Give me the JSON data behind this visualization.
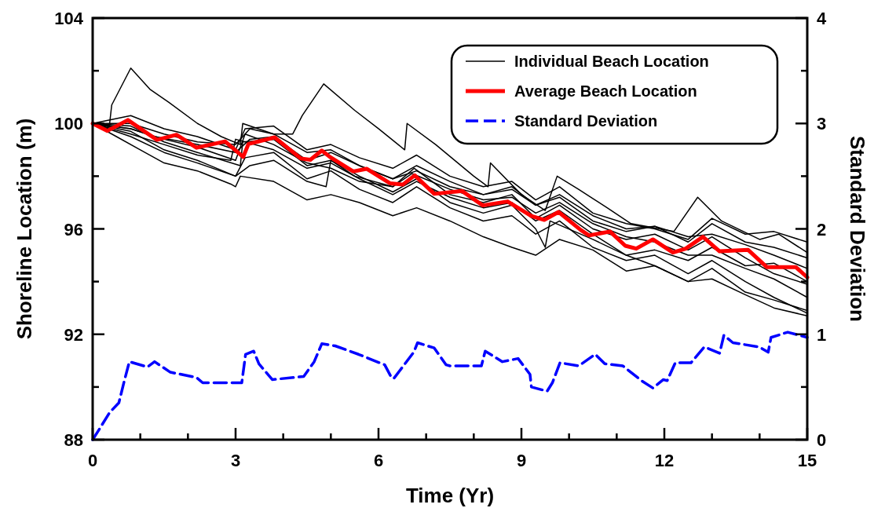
{
  "chart_data": {
    "type": "line",
    "xlabel": "Time (Yr)",
    "ylabel": "Shoreline Location (m)",
    "y2label": "Standard Deviation",
    "xlim": [
      0,
      15
    ],
    "xticks": [
      0,
      {
        "value": 1,
        "label": null
      },
      {
        "value": 2,
        "label": null
      },
      3,
      {
        "value": 4,
        "label": null
      },
      {
        "value": 5,
        "label": null
      },
      6,
      {
        "value": 7,
        "label": null
      },
      {
        "value": 8,
        "label": null
      },
      9,
      {
        "value": 10,
        "label": null
      },
      {
        "value": 11,
        "label": null
      },
      12,
      {
        "value": 13,
        "label": null
      },
      {
        "value": 14,
        "label": null
      },
      15
    ],
    "ylim": [
      88,
      104
    ],
    "yticks": [
      88,
      {
        "value": 90,
        "label": null
      },
      92,
      {
        "value": 94,
        "label": null
      },
      96,
      {
        "value": 98,
        "label": null
      },
      100,
      {
        "value": 102,
        "label": null
      },
      104
    ],
    "y2lim": [
      0,
      4
    ],
    "y2ticks": [
      0,
      {
        "value": 0.5,
        "label": null
      },
      1,
      {
        "value": 1.5,
        "label": null
      },
      2,
      {
        "value": 2.5,
        "label": null
      },
      3,
      {
        "value": 3.5,
        "label": null
      },
      4
    ],
    "legend": "top right",
    "series": [
      {
        "color": "#000000",
        "x": [
          0,
          0.8,
          1.5,
          2.2,
          3.0,
          3.2,
          3.8,
          4.5,
          5.0,
          5.6,
          6.3,
          6.8,
          7.5,
          8.2,
          8.8,
          9.3,
          9.8,
          10.5,
          11.2,
          11.8,
          12.5,
          13.0,
          13.7,
          14.3,
          15
        ],
        "values": [
          100,
          99.7,
          99.0,
          98.6,
          98.0,
          98.7,
          98.9,
          97.9,
          98.2,
          97.5,
          97.0,
          97.6,
          96.8,
          96.3,
          96.5,
          95.8,
          96.3,
          95.3,
          94.8,
          95.0,
          94.3,
          94.8,
          94.0,
          93.4,
          92.8
        ]
      },
      {
        "color": "#000000",
        "x": [
          0,
          0.8,
          1.5,
          2.2,
          3.1,
          3.15,
          3.8,
          4.5,
          5.0,
          5.5,
          6.3,
          6.75,
          7.5,
          8.2,
          8.8,
          9.3,
          9.8,
          10.5,
          11.2,
          11.8,
          12.5,
          13.0,
          13.7,
          14.3,
          15
        ],
        "values": [
          100,
          99.9,
          99.3,
          98.9,
          98.4,
          99.3,
          99.4,
          98.4,
          98.6,
          98.0,
          97.6,
          98.3,
          97.3,
          97.0,
          97.3,
          96.4,
          96.9,
          96.0,
          95.6,
          95.8,
          95.2,
          95.7,
          94.9,
          94.3,
          93.9
        ]
      },
      {
        "color": "#000000",
        "x": [
          0,
          0.8,
          1.5,
          2.2,
          3.0,
          3.2,
          3.8,
          4.5,
          5.0,
          5.6,
          6.3,
          6.8,
          7.5,
          8.2,
          8.8,
          9.3,
          9.8,
          10.5,
          11.2,
          11.8,
          12.5,
          13.0,
          13.7,
          14.3,
          15
        ],
        "values": [
          100,
          100.3,
          99.8,
          99.5,
          99.0,
          99.8,
          99.9,
          99.0,
          99.2,
          98.7,
          98.3,
          98.8,
          98.0,
          97.6,
          97.8,
          97.1,
          97.6,
          96.6,
          96.2,
          96.0,
          95.6,
          96.4,
          95.8,
          95.9,
          95.5
        ]
      },
      {
        "color": "#000000",
        "x": [
          0,
          0.8,
          1.3,
          2.2,
          3.0,
          3.3,
          3.8,
          4.5,
          5.0,
          5.6,
          6.3,
          6.8,
          7.5,
          8.2,
          8.8,
          9.3,
          9.8,
          10.5,
          11.2,
          11.8,
          12.5,
          13.0,
          13.7,
          14.3,
          15
        ],
        "values": [
          100,
          99.8,
          99.5,
          99.2,
          98.9,
          99.4,
          99.5,
          98.6,
          98.9,
          98.4,
          97.9,
          98.2,
          97.6,
          97.3,
          97.6,
          96.9,
          97.2,
          96.3,
          95.9,
          96.1,
          95.7,
          95.8,
          95.4,
          95.0,
          94.5
        ]
      },
      {
        "color": "#000000",
        "x": [
          0,
          0.8,
          1.5,
          2.2,
          3.0,
          3.3,
          3.8,
          4.5,
          4.9,
          5.0,
          5.6,
          6.3,
          6.8,
          7.5,
          8.2,
          8.8,
          9.3,
          9.5,
          9.6,
          10.5,
          11.2,
          11.8,
          12.5,
          13.0,
          13.7,
          14.3,
          15
        ],
        "values": [
          100,
          99.5,
          98.9,
          98.5,
          98.0,
          98.4,
          98.6,
          97.8,
          97.6,
          98.6,
          98.0,
          97.4,
          97.9,
          97.0,
          96.6,
          96.9,
          96.0,
          95.3,
          96.3,
          95.6,
          95.0,
          94.6,
          94.0,
          94.5,
          93.6,
          93.3,
          92.9
        ]
      },
      {
        "color": "#000000",
        "x": [
          0,
          0.8,
          1.5,
          2.2,
          2.9,
          3.0,
          3.8,
          4.5,
          5.0,
          5.6,
          6.3,
          6.8,
          7.5,
          8.2,
          8.8,
          9.3,
          9.8,
          10.5,
          11.2,
          11.8,
          12.5,
          13.0,
          13.7,
          14.3,
          15
        ],
        "values": [
          100,
          99.6,
          99.2,
          98.8,
          98.6,
          99.4,
          99.0,
          98.3,
          98.5,
          97.9,
          97.3,
          97.8,
          97.2,
          96.8,
          97.0,
          96.3,
          96.7,
          95.8,
          95.0,
          95.2,
          94.8,
          95.3,
          94.6,
          94.7,
          94.0
        ]
      },
      {
        "color": "#000000",
        "x": [
          0,
          0.5,
          1.0,
          1.5,
          2.2,
          2.9,
          3.0,
          3.1,
          3.8,
          4.5,
          5.0,
          5.6,
          6.3,
          6.8,
          7.5,
          8.2,
          8.8,
          9.3,
          9.8,
          10.5,
          11.2,
          11.8,
          12.5,
          13.0,
          13.7,
          14.3,
          15
        ],
        "values": [
          100,
          99.5,
          99.0,
          98.5,
          98.2,
          97.7,
          97.6,
          98.0,
          97.8,
          97.1,
          97.3,
          97.0,
          96.5,
          96.8,
          96.3,
          95.7,
          95.3,
          95.0,
          95.6,
          95.2,
          94.4,
          94.6,
          94.0,
          94.1,
          93.5,
          93.0,
          92.7
        ]
      },
      {
        "color": "#000000",
        "x": [
          0,
          0.8,
          1.5,
          2.2,
          3.0,
          3.2,
          3.8,
          4.5,
          5.0,
          5.6,
          6.3,
          6.7,
          7.5,
          8.2,
          8.8,
          9.3,
          9.8,
          10.5,
          11.2,
          11.8,
          12.5,
          13.0,
          13.7,
          14.3,
          15
        ],
        "values": [
          100,
          99.8,
          99.4,
          99.1,
          98.6,
          99.6,
          99.2,
          98.5,
          98.3,
          97.8,
          97.6,
          98.1,
          97.5,
          97.1,
          97.2,
          96.6,
          97.0,
          96.2,
          95.7,
          95.5,
          95.0,
          95.0,
          94.5,
          94.1,
          93.4
        ]
      },
      {
        "color": "#000000",
        "x": [
          0,
          0.8,
          1.5,
          2.2,
          3.0,
          3.3,
          3.8,
          4.5,
          5.0,
          5.6,
          6.3,
          6.8,
          7.5,
          8.2,
          8.8,
          9.3,
          9.8,
          10.5,
          11.2,
          11.8,
          12.5,
          13.0,
          13.7,
          14.3,
          15
        ],
        "values": [
          100,
          100.0,
          99.6,
          99.3,
          99.2,
          99.8,
          99.6,
          98.9,
          99.0,
          98.4,
          97.9,
          98.4,
          97.8,
          97.3,
          97.5,
          96.9,
          97.3,
          96.5,
          96.0,
          96.1,
          95.5,
          96.2,
          95.5,
          95.3,
          94.9
        ]
      },
      {
        "name": "Individual Beach Location",
        "color": "#000000",
        "x": [
          0,
          0.35,
          0.4,
          0.8,
          1.2,
          1.6,
          2.2,
          2.7,
          3.1,
          3.15,
          3.8,
          4.2,
          4.4,
          4.85,
          5.5,
          6.0,
          6.55,
          6.6,
          7.2,
          8.0,
          8.3,
          8.35,
          9.0,
          9.5,
          9.75,
          10.2,
          10.8,
          11.3,
          12.2,
          12.7,
          13.2,
          14.0,
          14.4,
          15
        ],
        "values": [
          100,
          99.9,
          100.7,
          102.1,
          101.3,
          100.8,
          100.0,
          99.5,
          99.2,
          100.0,
          99.6,
          99.6,
          100.3,
          101.5,
          100.5,
          99.8,
          99.0,
          100.0,
          99.2,
          98.0,
          97.6,
          98.5,
          97.3,
          96.7,
          98.0,
          97.5,
          96.8,
          96.2,
          95.9,
          97.2,
          96.3,
          95.6,
          95.8,
          95.1
        ]
      },
      {
        "name": "Average Beach Location",
        "color": "#ff0000",
        "x": [
          0,
          0.31,
          0.74,
          1.19,
          1.35,
          1.76,
          2.18,
          2.78,
          3.16,
          3.27,
          3.82,
          4.37,
          4.57,
          4.81,
          4.98,
          5.47,
          5.75,
          6.24,
          6.51,
          6.76,
          7.17,
          7.75,
          8.19,
          8.71,
          9.21,
          9.48,
          9.78,
          10.25,
          10.42,
          10.86,
          11.18,
          11.41,
          11.76,
          12.18,
          12.45,
          12.81,
          13.16,
          13.76,
          14.15,
          14.76,
          15
        ],
        "values": [
          100,
          99.72,
          100.13,
          99.57,
          99.38,
          99.57,
          99.08,
          99.32,
          98.73,
          99.22,
          99.47,
          98.67,
          98.62,
          98.97,
          98.73,
          98.18,
          98.28,
          97.73,
          97.68,
          98.03,
          97.33,
          97.44,
          96.89,
          97.04,
          96.49,
          96.34,
          96.64,
          95.95,
          95.75,
          95.9,
          95.36,
          95.25,
          95.6,
          95.1,
          95.25,
          95.7,
          95.15,
          95.2,
          94.55,
          94.55,
          94.16
        ]
      },
      {
        "name": "Standard Deviation",
        "color": "#0000ff",
        "axis": "y2",
        "line_style": "dashed",
        "x": [
          0,
          0.14,
          0.36,
          0.55,
          0.66,
          0.77,
          1.15,
          1.3,
          1.63,
          2.18,
          2.31,
          3.13,
          3.21,
          3.38,
          3.49,
          3.77,
          4.43,
          4.65,
          4.81,
          5.09,
          5.58,
          6.13,
          6.26,
          6.32,
          6.74,
          6.82,
          7.17,
          7.42,
          7.5,
          8.16,
          8.24,
          8.6,
          8.93,
          9.18,
          9.21,
          9.54,
          9.65,
          9.81,
          10.2,
          10.55,
          10.75,
          11.13,
          11.52,
          11.76,
          11.98,
          12.06,
          12.23,
          12.56,
          12.84,
          13.16,
          13.25,
          13.44,
          13.99,
          14.18,
          14.24,
          14.59,
          15
        ],
        "values": [
          0,
          0.1,
          0.26,
          0.35,
          0.55,
          0.74,
          0.69,
          0.74,
          0.64,
          0.59,
          0.54,
          0.54,
          0.81,
          0.84,
          0.72,
          0.57,
          0.6,
          0.74,
          0.91,
          0.89,
          0.81,
          0.71,
          0.6,
          0.58,
          0.83,
          0.92,
          0.87,
          0.71,
          0.7,
          0.7,
          0.84,
          0.74,
          0.77,
          0.62,
          0.5,
          0.46,
          0.54,
          0.73,
          0.7,
          0.81,
          0.72,
          0.7,
          0.56,
          0.49,
          0.57,
          0.56,
          0.73,
          0.73,
          0.88,
          0.82,
          0.99,
          0.92,
          0.88,
          0.83,
          0.97,
          1.02,
          0.97
        ]
      }
    ]
  }
}
